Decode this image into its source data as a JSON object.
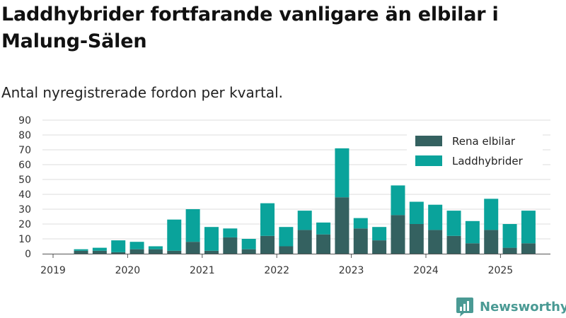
{
  "title": "Laddhybrider fortfarande vanligare än elbilar i Malung-Sälen",
  "subtitle": "Antal nyregistrerade fordon per kvartal.",
  "brand": "Newsworthy",
  "colors": {
    "elbil": "#346160",
    "laddhybrid": "#0aa39b",
    "grid": "#dddddd",
    "axis": "#555555",
    "brand": "#4a9a94"
  },
  "chart_data": {
    "type": "bar",
    "stacked": true,
    "ylim": [
      0,
      90
    ],
    "yticks": [
      0,
      10,
      20,
      30,
      40,
      50,
      60,
      70,
      80,
      90
    ],
    "xticks": [
      "2019",
      "2020",
      "2021",
      "2022",
      "2023",
      "2024",
      "2025"
    ],
    "legend_position": "top-right",
    "grid": true,
    "categories": [
      "2019 Q2",
      "2019 Q3",
      "2019 Q4",
      "2020 Q1",
      "2020 Q2",
      "2020 Q3",
      "2020 Q4",
      "2021 Q1",
      "2021 Q2",
      "2021 Q3",
      "2021 Q4",
      "2022 Q1",
      "2022 Q2",
      "2022 Q3",
      "2022 Q4",
      "2023 Q1",
      "2023 Q2",
      "2023 Q3",
      "2023 Q4",
      "2024 Q1",
      "2024 Q2",
      "2024 Q3",
      "2024 Q4",
      "2025 Q1",
      "2025 Q2"
    ],
    "series": [
      {
        "name": "Rena elbilar",
        "values": [
          2,
          2,
          1,
          3,
          3,
          2,
          8,
          2,
          11,
          3,
          12,
          5,
          16,
          13,
          38,
          17,
          9,
          26,
          20,
          16,
          12,
          7,
          16,
          4,
          7
        ]
      },
      {
        "name": "Laddhybrider",
        "values": [
          1,
          2,
          8,
          5,
          2,
          21,
          22,
          16,
          6,
          7,
          22,
          13,
          13,
          8,
          33,
          7,
          9,
          20,
          15,
          17,
          17,
          15,
          21,
          16,
          22
        ]
      }
    ]
  }
}
